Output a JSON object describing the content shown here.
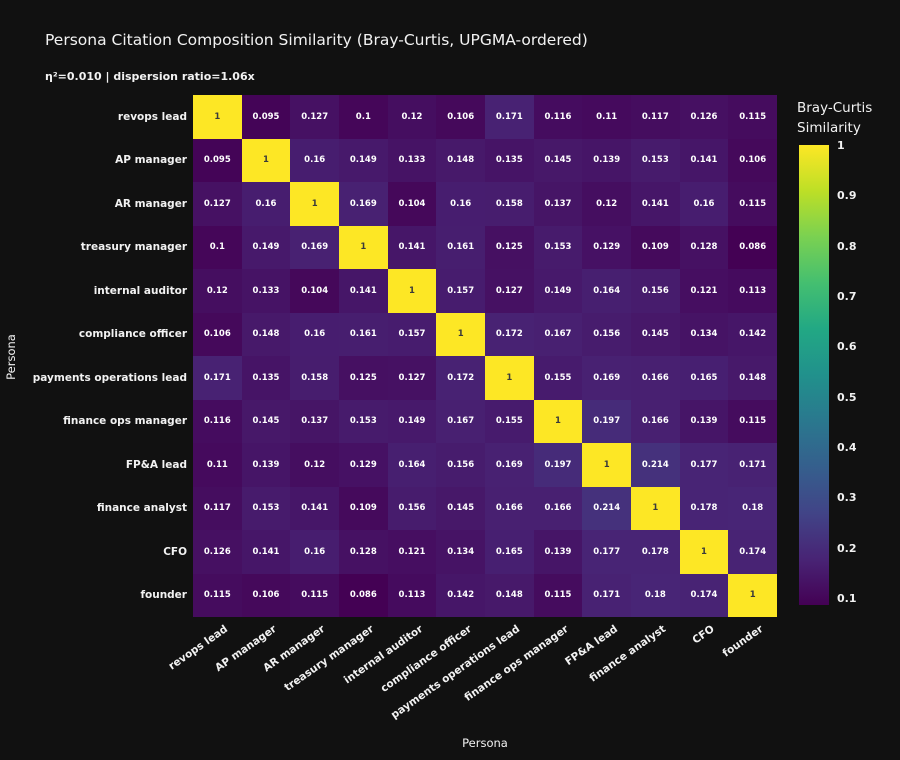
{
  "background": "#111111",
  "text_color": "#f2f2f2",
  "chart_data": {
    "type": "heatmap",
    "title": "Persona Citation Composition Similarity (Bray-Curtis, UPGMA-ordered)",
    "subtitle": "η²=0.010 | dispersion ratio=1.06x",
    "xlabel": "Persona",
    "ylabel": "Persona",
    "categories": [
      "revops lead",
      "AP manager",
      "AR manager",
      "treasury manager",
      "internal auditor",
      "compliance officer",
      "payments operations lead",
      "finance ops manager",
      "FP&A lead",
      "finance analyst",
      "CFO",
      "founder"
    ],
    "matrix": [
      [
        1,
        0.095,
        0.127,
        0.1,
        0.12,
        0.106,
        0.171,
        0.116,
        0.11,
        0.117,
        0.126,
        0.115
      ],
      [
        0.095,
        1,
        0.16,
        0.149,
        0.133,
        0.148,
        0.135,
        0.145,
        0.139,
        0.153,
        0.141,
        0.106
      ],
      [
        0.127,
        0.16,
        1,
        0.169,
        0.104,
        0.16,
        0.158,
        0.137,
        0.12,
        0.141,
        0.16,
        0.115
      ],
      [
        0.1,
        0.149,
        0.169,
        1,
        0.141,
        0.161,
        0.125,
        0.153,
        0.129,
        0.109,
        0.128,
        0.086
      ],
      [
        0.12,
        0.133,
        0.104,
        0.141,
        1,
        0.157,
        0.127,
        0.149,
        0.164,
        0.156,
        0.121,
        0.113
      ],
      [
        0.106,
        0.148,
        0.16,
        0.161,
        0.157,
        1,
        0.172,
        0.167,
        0.156,
        0.145,
        0.134,
        0.142
      ],
      [
        0.171,
        0.135,
        0.158,
        0.125,
        0.127,
        0.172,
        1,
        0.155,
        0.169,
        0.166,
        0.165,
        0.148
      ],
      [
        0.116,
        0.145,
        0.137,
        0.153,
        0.149,
        0.167,
        0.155,
        1,
        0.197,
        0.166,
        0.139,
        0.115
      ],
      [
        0.11,
        0.139,
        0.12,
        0.129,
        0.164,
        0.156,
        0.169,
        0.197,
        1,
        0.214,
        0.177,
        0.171
      ],
      [
        0.117,
        0.153,
        0.141,
        0.109,
        0.156,
        0.145,
        0.166,
        0.166,
        0.214,
        1,
        0.178,
        0.18
      ],
      [
        0.126,
        0.141,
        0.16,
        0.128,
        0.121,
        0.134,
        0.165,
        0.139,
        0.177,
        0.178,
        1,
        0.174
      ],
      [
        0.115,
        0.106,
        0.115,
        0.086,
        0.113,
        0.142,
        0.148,
        0.115,
        0.171,
        0.18,
        0.174,
        1
      ]
    ],
    "colormap": "viridis",
    "vmin": 0.086,
    "vmax": 1.0,
    "cell_text_light": "#ffffff",
    "cell_text_dark": "#3a3a3a",
    "grid": false,
    "legend_position": "right",
    "colorbar": {
      "title_lines": [
        "Bray-Curtis",
        "Similarity"
      ],
      "ticks": [
        1,
        0.9,
        0.8,
        0.7,
        0.6,
        0.5,
        0.4,
        0.3,
        0.2,
        0.1
      ]
    },
    "viridis_stops": [
      "#440154",
      "#482475",
      "#414487",
      "#355f8d",
      "#2a788e",
      "#21918c",
      "#22a884",
      "#44bf70",
      "#7ad151",
      "#bddf26",
      "#fde725"
    ]
  }
}
